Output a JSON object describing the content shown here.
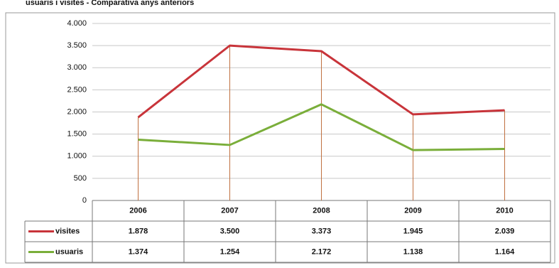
{
  "chart_data": {
    "type": "line",
    "title": "usuaris i visites - Comparativa anys anteriors",
    "categories": [
      "2006",
      "2007",
      "2008",
      "2009",
      "2010"
    ],
    "series": [
      {
        "name": "visites",
        "color": "#c8343a",
        "values": [
          1878,
          3500,
          3373,
          1945,
          2039
        ],
        "value_labels": [
          "1.878",
          "3.500",
          "3.373",
          "1.945",
          "2.039"
        ]
      },
      {
        "name": "usuaris",
        "color": "#7aae3a",
        "values": [
          1374,
          1254,
          2172,
          1138,
          1164
        ],
        "value_labels": [
          "1.374",
          "1.254",
          "2.172",
          "1.138",
          "1.164"
        ]
      }
    ],
    "ylim": [
      0,
      4000
    ],
    "yticks": [
      0,
      500,
      {
        "value": 1000,
        "label": "1.000"
      },
      {
        "value": 1500,
        "label": "1.500"
      },
      {
        "value": 2000,
        "label": "2.000"
      },
      {
        "value": 2500,
        "label": "2.500"
      },
      {
        "value": 3000,
        "label": "3.000"
      },
      {
        "value": 3500,
        "label": "3.500"
      },
      {
        "value": 4000,
        "label": "4.000"
      }
    ],
    "grid": true,
    "drop_lines": true,
    "data_table": true
  }
}
